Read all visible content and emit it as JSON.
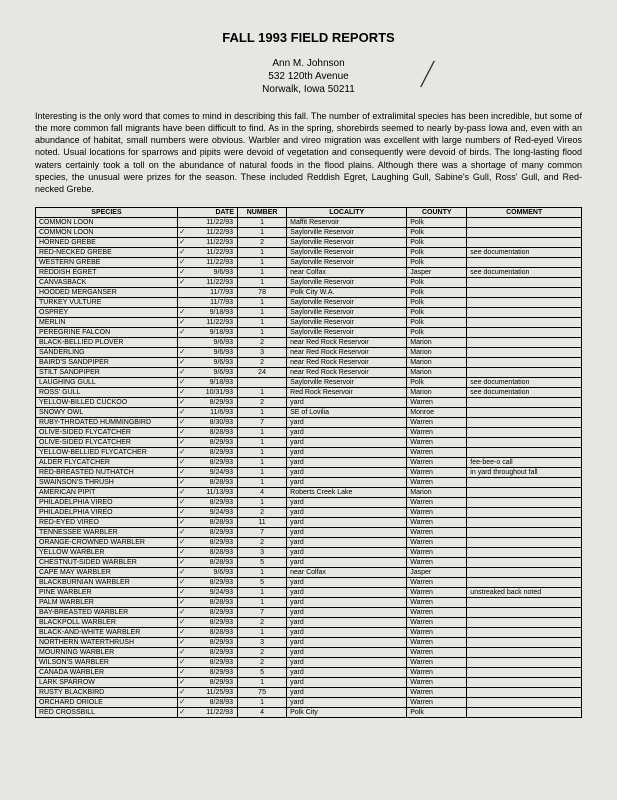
{
  "title": "FALL 1993 FIELD REPORTS",
  "author": {
    "name": "Ann M. Johnson",
    "street": "532 120th Avenue",
    "city": "Norwalk, Iowa  50211"
  },
  "intro": "Interesting is the only word that comes to mind in describing this fall. The number of extralimital species has been incredible, but some of the more common fall migrants have been difficult to find. As in the spring, shorebirds seemed to nearly by-pass Iowa and, even with an abundance of habitat, small numbers were obvious. Warbler and vireo migration was excellent with large numbers of Red-eyed Vireos noted. Usual locations for sparrows and pipits were devoid of vegetation and consequently were devoid of birds. The long-lasting flood waters certainly took a toll on the abundance of natural foods in the flood plains. Although there was a shortage of many common species, the unusual were prizes for the season. These included Reddish Egret, Laughing Gull, Sabine's Gull, Ross' Gull, and Red-necked Grebe.",
  "headers": [
    "SPECIES",
    "DATE",
    "NUMBER",
    "LOCALITY",
    "COUNTY",
    "COMMENT"
  ],
  "rows": [
    {
      "s": "COMMON LOON",
      "d": "11/22/93",
      "n": "1",
      "l": "Maffit Reservoir",
      "c": "Polk",
      "m": "",
      "t": false
    },
    {
      "s": "COMMON LOON",
      "d": "11/22/93",
      "n": "1",
      "l": "Saylorville Reservoir",
      "c": "Polk",
      "m": "",
      "t": true
    },
    {
      "s": "HORNED GREBE",
      "d": "11/22/93",
      "n": "2",
      "l": "Saylorville Reservoir",
      "c": "Polk",
      "m": "",
      "t": true
    },
    {
      "s": "RED-NECKED GREBE",
      "d": "11/22/93",
      "n": "1",
      "l": "Saylorville Reservoir",
      "c": "Polk",
      "m": "see documentation",
      "t": true
    },
    {
      "s": "WESTERN GREBE",
      "d": "11/22/93",
      "n": "1",
      "l": "Saylorville Reservoir",
      "c": "Polk",
      "m": "",
      "t": true
    },
    {
      "s": "REDDISH EGRET",
      "d": "9/6/93",
      "n": "1",
      "l": "near Colfax",
      "c": "Jasper",
      "m": "see documentation",
      "t": true
    },
    {
      "s": "CANVASBACK",
      "d": "11/22/93",
      "n": "1",
      "l": "Saylorville Reservoir",
      "c": "Polk",
      "m": "",
      "t": true
    },
    {
      "s": "HOODED MERGANSER",
      "d": "11/7/93",
      "n": "78",
      "l": "Polk City W.A.",
      "c": "Polk",
      "m": "",
      "t": false
    },
    {
      "s": "TURKEY VULTURE",
      "d": "11/7/93",
      "n": "1",
      "l": "Saylorville Reservoir",
      "c": "Polk",
      "m": "",
      "t": false
    },
    {
      "s": "OSPREY",
      "d": "9/18/93",
      "n": "1",
      "l": "Saylorville Reservoir",
      "c": "Polk",
      "m": "",
      "t": true
    },
    {
      "s": "MERLIN",
      "d": "11/22/93",
      "n": "1",
      "l": "Saylorville Reservoir",
      "c": "Polk",
      "m": "",
      "t": true
    },
    {
      "s": "PEREGRINE FALCON",
      "d": "9/18/93",
      "n": "1",
      "l": "Saylorville Reservoir",
      "c": "Polk",
      "m": "",
      "t": true
    },
    {
      "s": "BLACK-BELLIED PLOVER",
      "d": "9/6/93",
      "n": "2",
      "l": "near Red Rock Reservoir",
      "c": "Marion",
      "m": "",
      "t": false
    },
    {
      "s": "SANDERLING",
      "d": "9/6/93",
      "n": "3",
      "l": "near Red Rock Reservoir",
      "c": "Marion",
      "m": "",
      "t": true
    },
    {
      "s": "BAIRD'S SANDPIPER",
      "d": "9/6/93",
      "n": "2",
      "l": "near Red Rock Reservoir",
      "c": "Marion",
      "m": "",
      "t": true
    },
    {
      "s": "STILT SANDPIPER",
      "d": "9/6/93",
      "n": "24",
      "l": "near Red Rock Reservoir",
      "c": "Marion",
      "m": "",
      "t": true
    },
    {
      "s": "LAUGHING GULL",
      "d": "9/18/93",
      "n": "",
      "l": "Saylorville Reservoir",
      "c": "Polk",
      "m": "see documentation",
      "t": true
    },
    {
      "s": "ROSS' GULL",
      "d": "10/31/93",
      "n": "1",
      "l": "Red Rock Reservoir",
      "c": "Marion",
      "m": "see documentation",
      "t": true
    },
    {
      "s": "YELLOW-BILLED CUCKOO",
      "d": "8/29/93",
      "n": "2",
      "l": "yard",
      "c": "Warren",
      "m": "",
      "t": true
    },
    {
      "s": "SNOWY OWL",
      "d": "11/6/93",
      "n": "1",
      "l": "SE of Lovilia",
      "c": "Monroe",
      "m": "",
      "t": true
    },
    {
      "s": "RUBY-THROATED HUMMINGBIRD",
      "d": "8/30/93",
      "n": "7",
      "l": "yard",
      "c": "Warren",
      "m": "",
      "t": true
    },
    {
      "s": "OLIVE-SIDED FLYCATCHER",
      "d": "8/28/93",
      "n": "1",
      "l": "yard",
      "c": "Warren",
      "m": "",
      "t": true
    },
    {
      "s": "OLIVE-SIDED FLYCATCHER",
      "d": "8/29/93",
      "n": "1",
      "l": "yard",
      "c": "Warren",
      "m": "",
      "t": true
    },
    {
      "s": "YELLOW-BELLIED FLYCATCHER",
      "d": "8/29/93",
      "n": "1",
      "l": "yard",
      "c": "Warren",
      "m": "",
      "t": true
    },
    {
      "s": "ALDER FLYCATCHER",
      "d": "8/29/93",
      "n": "1",
      "l": "yard",
      "c": "Warren",
      "m": "fee-bee-o call",
      "t": true
    },
    {
      "s": "RED-BREASTED NUTHATCH",
      "d": "9/24/93",
      "n": "1",
      "l": "yard",
      "c": "Warren",
      "m": "in yard throughout fall",
      "t": true
    },
    {
      "s": "SWAINSON'S THRUSH",
      "d": "8/28/93",
      "n": "1",
      "l": "yard",
      "c": "Warren",
      "m": "",
      "t": true
    },
    {
      "s": "AMERICAN PIPIT",
      "d": "11/13/93",
      "n": "4",
      "l": "Roberts Creek Lake",
      "c": "Marion",
      "m": "",
      "t": true
    },
    {
      "s": "PHILADELPHIA VIREO",
      "d": "8/29/93",
      "n": "1",
      "l": "yard",
      "c": "Warren",
      "m": "",
      "t": true
    },
    {
      "s": "PHILADELPHIA VIREO",
      "d": "9/24/93",
      "n": "2",
      "l": "yard",
      "c": "Warren",
      "m": "",
      "t": true
    },
    {
      "s": "RED-EYED VIREO",
      "d": "8/28/93",
      "n": "11",
      "l": "yard",
      "c": "Warren",
      "m": "",
      "t": true
    },
    {
      "s": "TENNESSEE WARBLER",
      "d": "8/29/93",
      "n": "7",
      "l": "yard",
      "c": "Warren",
      "m": "",
      "t": true
    },
    {
      "s": "ORANGE-CROWNED WARBLER",
      "d": "8/29/93",
      "n": "2",
      "l": "yard",
      "c": "Warren",
      "m": "",
      "t": true
    },
    {
      "s": "YELLOW WARBLER",
      "d": "8/28/93",
      "n": "3",
      "l": "yard",
      "c": "Warren",
      "m": "",
      "t": true
    },
    {
      "s": "CHESTNUT-SIDED WARBLER",
      "d": "8/28/93",
      "n": "5",
      "l": "yard",
      "c": "Warren",
      "m": "",
      "t": true
    },
    {
      "s": "CAPE MAY WARBLER",
      "d": "9/6/93",
      "n": "1",
      "l": "near Colfax",
      "c": "Jasper",
      "m": "",
      "t": true
    },
    {
      "s": "BLACKBURNIAN WARBLER",
      "d": "8/29/93",
      "n": "5",
      "l": "yard",
      "c": "Warren",
      "m": "",
      "t": true
    },
    {
      "s": "PINE WARBLER",
      "d": "9/24/93",
      "n": "1",
      "l": "yard",
      "c": "Warren",
      "m": "unstreaked back noted",
      "t": true
    },
    {
      "s": "PALM WARBLER",
      "d": "8/28/93",
      "n": "1",
      "l": "yard",
      "c": "Warren",
      "m": "",
      "t": true
    },
    {
      "s": "BAY-BREASTED WARBLER",
      "d": "8/29/93",
      "n": "7",
      "l": "yard",
      "c": "Warren",
      "m": "",
      "t": true
    },
    {
      "s": "BLACKPOLL WARBLER",
      "d": "8/29/93",
      "n": "2",
      "l": "yard",
      "c": "Warren",
      "m": "",
      "t": true
    },
    {
      "s": "BLACK-AND-WHITE WARBLER",
      "d": "8/28/93",
      "n": "1",
      "l": "yard",
      "c": "Warren",
      "m": "",
      "t": true
    },
    {
      "s": "NORTHERN WATERTHRUSH",
      "d": "8/29/93",
      "n": "3",
      "l": "yard",
      "c": "Warren",
      "m": "",
      "t": true
    },
    {
      "s": "MOURNING WARBLER",
      "d": "8/29/93",
      "n": "2",
      "l": "yard",
      "c": "Warren",
      "m": "",
      "t": true
    },
    {
      "s": "WILSON'S WARBLER",
      "d": "8/29/93",
      "n": "2",
      "l": "yard",
      "c": "Warren",
      "m": "",
      "t": true
    },
    {
      "s": "CANADA WARBLER",
      "d": "8/29/93",
      "n": "5",
      "l": "yard",
      "c": "Warren",
      "m": "",
      "t": true
    },
    {
      "s": "LARK SPARROW",
      "d": "8/29/93",
      "n": "1",
      "l": "yard",
      "c": "Warren",
      "m": "",
      "t": true
    },
    {
      "s": "RUSTY BLACKBIRD",
      "d": "11/25/93",
      "n": "75",
      "l": "yard",
      "c": "Warren",
      "m": "",
      "t": true
    },
    {
      "s": "ORCHARD ORIOLE",
      "d": "8/28/93",
      "n": "1",
      "l": "yard",
      "c": "Warren",
      "m": "",
      "t": true
    },
    {
      "s": "RED CROSSBILL",
      "d": "11/22/93",
      "n": "4",
      "l": "Polk City",
      "c": "Polk",
      "m": "",
      "t": true
    }
  ]
}
